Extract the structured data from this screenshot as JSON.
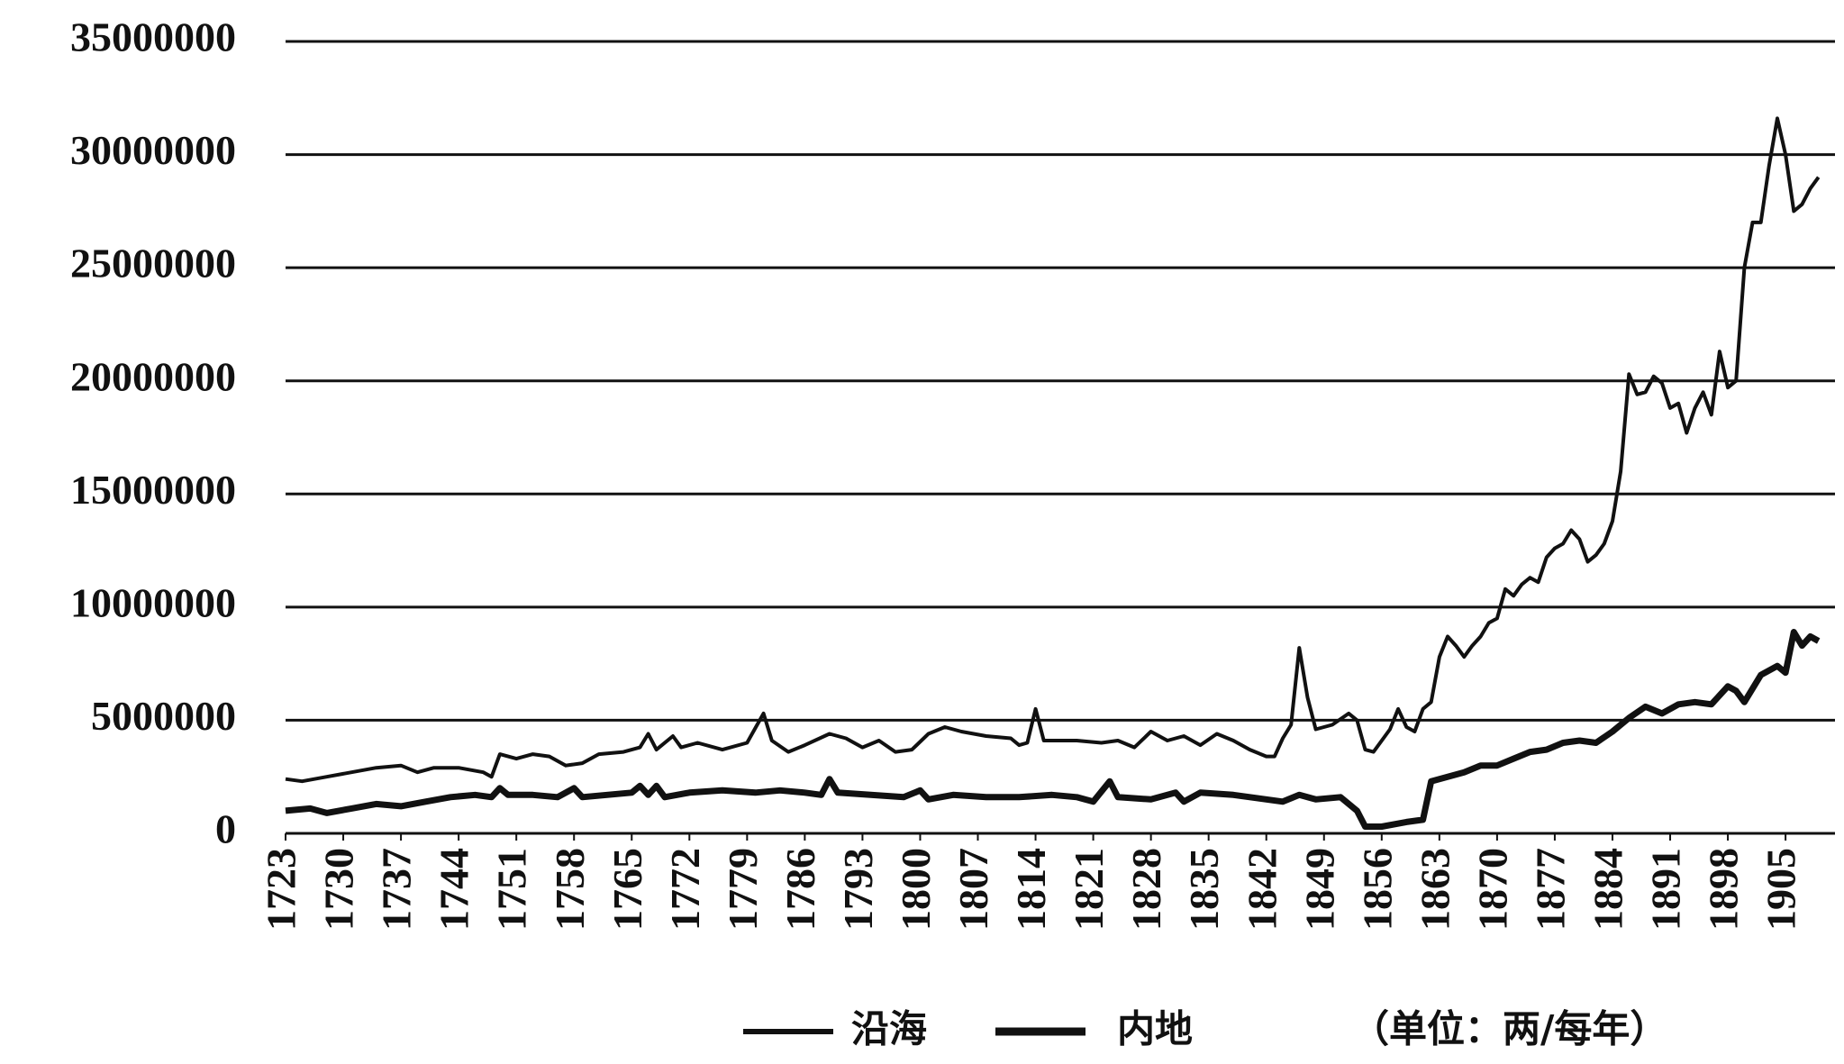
{
  "chart_data": {
    "type": "line",
    "annotation": "（单位：两/每年）",
    "xlim": [
      1723,
      1911
    ],
    "xticks": [
      1723,
      1730,
      1737,
      1744,
      1751,
      1758,
      1765,
      1772,
      1779,
      1786,
      1793,
      1800,
      1807,
      1814,
      1821,
      1828,
      1835,
      1842,
      1849,
      1856,
      1863,
      1870,
      1877,
      1884,
      1891,
      1898,
      1905
    ],
    "ylim": [
      0,
      35000000
    ],
    "yticks": [
      0,
      5000000,
      10000000,
      15000000,
      20000000,
      25000000,
      30000000,
      35000000
    ],
    "grid": true,
    "series": [
      {
        "name": "沿海",
        "color": "#111111",
        "linewidth": 4,
        "x": [
          1723,
          1725,
          1728,
          1731,
          1734,
          1737,
          1739,
          1741,
          1744,
          1747,
          1748,
          1749,
          1751,
          1753,
          1755,
          1757,
          1759,
          1761,
          1764,
          1766,
          1767,
          1768,
          1770,
          1771,
          1773,
          1776,
          1779,
          1781,
          1782,
          1784,
          1786,
          1789,
          1791,
          1793,
          1795,
          1797,
          1799,
          1801,
          1803,
          1805,
          1808,
          1811,
          1812,
          1813,
          1814,
          1815,
          1819,
          1822,
          1824,
          1826,
          1828,
          1830,
          1832,
          1834,
          1836,
          1838,
          1840,
          1842,
          1843,
          1844,
          1845,
          1846,
          1847,
          1848,
          1850,
          1852,
          1853,
          1854,
          1855,
          1857,
          1858,
          1859,
          1860,
          1861,
          1862,
          1863,
          1864,
          1865,
          1866,
          1867,
          1868,
          1869,
          1870,
          1871,
          1872,
          1873,
          1874,
          1875,
          1876,
          1877,
          1878,
          1879,
          1880,
          1881,
          1882,
          1883,
          1884,
          1885,
          1886,
          1887,
          1888,
          1889,
          1890,
          1891,
          1892,
          1893,
          1894,
          1895,
          1896,
          1897,
          1898,
          1899,
          1900,
          1901,
          1902,
          1903,
          1904,
          1905,
          1906,
          1907,
          1908,
          1909
        ],
        "values": [
          2400000,
          2300000,
          2500000,
          2700000,
          2900000,
          3000000,
          2700000,
          2900000,
          2900000,
          2700000,
          2500000,
          3500000,
          3300000,
          3500000,
          3400000,
          3000000,
          3100000,
          3500000,
          3600000,
          3800000,
          4400000,
          3700000,
          4300000,
          3800000,
          4000000,
          3700000,
          4000000,
          5300000,
          4100000,
          3600000,
          3900000,
          4400000,
          4200000,
          3800000,
          4100000,
          3600000,
          3700000,
          4400000,
          4700000,
          4500000,
          4300000,
          4200000,
          3900000,
          4000000,
          5500000,
          4100000,
          4100000,
          4000000,
          4100000,
          3800000,
          4500000,
          4100000,
          4300000,
          3900000,
          4400000,
          4100000,
          3700000,
          3400000,
          3400000,
          4200000,
          4800000,
          8200000,
          6000000,
          4600000,
          4800000,
          5300000,
          5000000,
          3700000,
          3600000,
          4600000,
          5500000,
          4700000,
          4500000,
          5500000,
          5800000,
          7800000,
          8700000,
          8300000,
          7800000,
          8300000,
          8700000,
          9300000,
          9500000,
          10800000,
          10500000,
          11000000,
          11300000,
          11100000,
          12200000,
          12600000,
          12800000,
          13400000,
          13000000,
          12000000,
          12300000,
          12800000,
          13800000,
          16000000,
          20300000,
          19400000,
          19500000,
          20200000,
          19900000,
          18800000,
          19000000,
          17700000,
          18800000,
          19500000,
          18500000,
          21300000,
          19700000,
          20000000,
          25000000,
          27000000,
          27000000,
          29500000,
          31600000,
          30000000,
          27500000,
          27800000,
          28500000,
          29000000
        ]
      },
      {
        "name": "内地",
        "color": "#111111",
        "linewidth": 7,
        "x": [
          1723,
          1726,
          1728,
          1731,
          1734,
          1737,
          1740,
          1743,
          1746,
          1748,
          1749,
          1750,
          1753,
          1756,
          1758,
          1759,
          1762,
          1765,
          1766,
          1767,
          1768,
          1769,
          1772,
          1776,
          1780,
          1783,
          1786,
          1788,
          1789,
          1790,
          1794,
          1798,
          1800,
          1801,
          1804,
          1808,
          1812,
          1816,
          1819,
          1821,
          1823,
          1824,
          1828,
          1831,
          1832,
          1834,
          1838,
          1842,
          1844,
          1846,
          1848,
          1851,
          1853,
          1854,
          1856,
          1859,
          1861,
          1862,
          1864,
          1866,
          1868,
          1870,
          1872,
          1874,
          1876,
          1878,
          1880,
          1882,
          1884,
          1886,
          1888,
          1890,
          1892,
          1894,
          1896,
          1898,
          1899,
          1900,
          1902,
          1904,
          1905,
          1906,
          1907,
          1908,
          1909
        ],
        "values": [
          1000000,
          1100000,
          900000,
          1100000,
          1300000,
          1200000,
          1400000,
          1600000,
          1700000,
          1600000,
          2000000,
          1700000,
          1700000,
          1600000,
          2000000,
          1600000,
          1700000,
          1800000,
          2100000,
          1700000,
          2100000,
          1600000,
          1800000,
          1900000,
          1800000,
          1900000,
          1800000,
          1700000,
          2400000,
          1800000,
          1700000,
          1600000,
          1900000,
          1500000,
          1700000,
          1600000,
          1600000,
          1700000,
          1600000,
          1400000,
          2300000,
          1600000,
          1500000,
          1800000,
          1400000,
          1800000,
          1700000,
          1500000,
          1400000,
          1700000,
          1500000,
          1600000,
          1000000,
          300000,
          300000,
          500000,
          600000,
          2300000,
          2500000,
          2700000,
          3000000,
          3000000,
          3300000,
          3600000,
          3700000,
          4000000,
          4100000,
          4000000,
          4500000,
          5100000,
          5600000,
          5300000,
          5700000,
          5800000,
          5700000,
          6500000,
          6300000,
          5800000,
          7000000,
          7400000,
          7100000,
          8900000,
          8300000,
          8700000,
          8500000
        ]
      }
    ]
  }
}
